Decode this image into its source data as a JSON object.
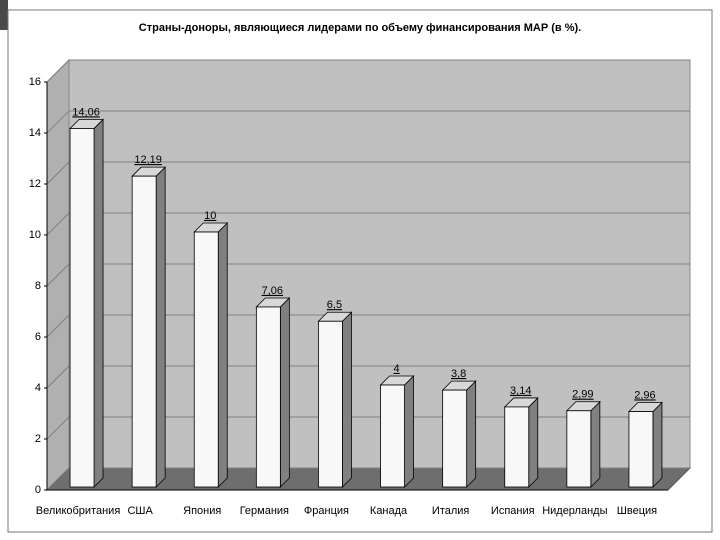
{
  "chart_data": {
    "type": "bar3d",
    "title": "Страны-доноры, являющиеся лидерами по объему финансирования МАР (в %).",
    "categories": [
      "Великобритания",
      "США",
      "Япония",
      "Германия",
      "Франция",
      "Канада",
      "Италия",
      "Испания",
      "Нидерланды",
      "Швеция"
    ],
    "values": [
      14.06,
      12.19,
      10,
      7.06,
      6.5,
      4,
      3.8,
      3.14,
      2.99,
      2.96
    ],
    "value_labels": [
      "14,06",
      "12,19",
      "10",
      "7,06",
      "6,5",
      "4",
      "3,8",
      "3,14",
      "2,99",
      "2,96"
    ],
    "color": "#f8f8f8",
    "ylim": [
      0,
      16
    ],
    "yticks": [
      0,
      2,
      4,
      6,
      8,
      10,
      12,
      14,
      16
    ],
    "grid": true
  }
}
